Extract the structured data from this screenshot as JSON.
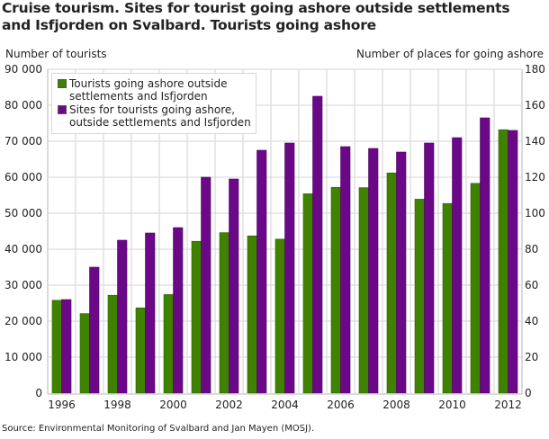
{
  "chart_data": {
    "type": "bar",
    "title": "Cruise tourism. Sites for tourist going ashore outside settlements and Isfjorden on Svalbard. Tourists going ashore",
    "ylabel_left": "Number of tourists",
    "ylabel_right": "Number of places for going ashore",
    "xlabel": "",
    "categories": [
      "1996",
      "1997",
      "1998",
      "1999",
      "2000",
      "2001",
      "2002",
      "2003",
      "2004",
      "2005",
      "2006",
      "2007",
      "2008",
      "2009",
      "2010",
      "2011",
      "2012"
    ],
    "x_tick_labels": [
      "1996",
      "1998",
      "2000",
      "2002",
      "2004",
      "2006",
      "2008",
      "2010",
      "2012"
    ],
    "ylim_left": [
      0,
      90000
    ],
    "ylim_right": [
      0,
      180
    ],
    "y_ticks_left": [
      "0",
      "10 000",
      "20 000",
      "30 000",
      "40 000",
      "50 000",
      "60 000",
      "70 000",
      "80 000",
      "90 000"
    ],
    "y_ticks_right": [
      "0",
      "20",
      "40",
      "60",
      "80",
      "100",
      "120",
      "140",
      "160",
      "180"
    ],
    "grid": true,
    "legend_position": "top-left",
    "series": [
      {
        "name": "Tourists going ashore outside settlements and Isfjorden",
        "axis": "left",
        "color": "#3f8200",
        "values": [
          25800,
          22100,
          27200,
          23700,
          27400,
          42200,
          44600,
          43700,
          42800,
          55400,
          57200,
          57100,
          61200,
          53900,
          52700,
          58300,
          73200
        ]
      },
      {
        "name": "Sites for tourists going ashore, outside settlements and Isfjorden",
        "axis": "right",
        "color": "#6b0888",
        "values": [
          52,
          70,
          85,
          89,
          92,
          120,
          119,
          135,
          139,
          165,
          137,
          136,
          134,
          139,
          142,
          153,
          146
        ]
      }
    ]
  },
  "legend": {
    "items": [
      {
        "line1": "Tourists going ashore outside",
        "line2": "settlements and Isfjorden"
      },
      {
        "line1": "Sites for tourists going ashore,",
        "line2": "outside settlements and Isfjorden"
      }
    ]
  },
  "source": "Source: Environmental Monitoring of Svalbard and Jan Mayen (MOSJ)."
}
